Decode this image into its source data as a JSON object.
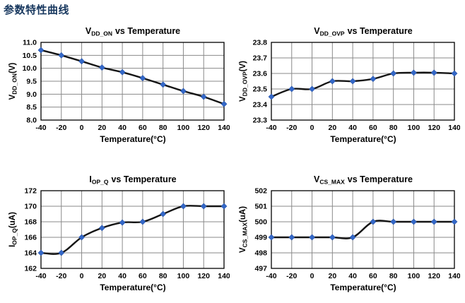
{
  "page": {
    "header": "参数特性曲线"
  },
  "colors": {
    "header": "#17375E",
    "line": "#141414",
    "marker": "#3468C8",
    "marker_stroke": "#2A55A8",
    "grid": "#8A8A8A",
    "frame": "#000000"
  },
  "chart_data": [
    {
      "type": "line",
      "title": {
        "main": "V",
        "sub": "DD_ON",
        "rest": "vs Temperature"
      },
      "ylabel": {
        "main": "V",
        "sub": "DD_ON",
        "rest": "(V)"
      },
      "xlabel": "Temperature(°C)",
      "x": [
        -40,
        -20,
        0,
        20,
        40,
        60,
        80,
        100,
        120,
        140
      ],
      "values": [
        10.7,
        10.5,
        10.27,
        10.03,
        9.85,
        9.62,
        9.37,
        9.12,
        8.9,
        8.62
      ],
      "ylim": [
        8.0,
        11.0
      ],
      "ystep": 0.5,
      "ydec": 1,
      "grid": true,
      "legend": "none"
    },
    {
      "type": "line",
      "title": {
        "main": "V",
        "sub": "DD_OVP",
        "rest": "vs Temperature"
      },
      "ylabel": {
        "main": "V",
        "sub": "DD_OVP",
        "rest": "(V)"
      },
      "xlabel": "Temperature(°C)",
      "x": [
        -40,
        -20,
        0,
        20,
        40,
        60,
        80,
        100,
        120,
        140
      ],
      "values": [
        23.45,
        23.5,
        23.5,
        23.55,
        23.55,
        23.565,
        23.6,
        23.605,
        23.605,
        23.6
      ],
      "ylim": [
        23.3,
        23.8
      ],
      "ystep": 0.1,
      "ydec": 1,
      "grid": true,
      "legend": "none"
    },
    {
      "type": "line",
      "title": {
        "main": "I",
        "sub": "OP_Q",
        "rest": "vs Temperature"
      },
      "ylabel": {
        "main": "I",
        "sub": "OP_Q",
        "rest": "(uA)"
      },
      "xlabel": "Temperature(°C)",
      "x": [
        -40,
        -20,
        0,
        20,
        40,
        60,
        80,
        100,
        120,
        140
      ],
      "values": [
        164,
        164,
        166,
        167.2,
        167.9,
        168,
        169,
        170,
        170,
        170
      ],
      "ylim": [
        162,
        172
      ],
      "ystep": 2,
      "ydec": 0,
      "grid": true,
      "legend": "none"
    },
    {
      "type": "line",
      "title": {
        "main": "V",
        "sub": "CS_MAX",
        "rest": "vs Temperature"
      },
      "ylabel": {
        "main": "V",
        "sub": "CS_MAX",
        "rest": "(uA)"
      },
      "xlabel": "Temperature(°C)",
      "x": [
        -40,
        -20,
        0,
        20,
        40,
        60,
        80,
        100,
        120,
        140
      ],
      "values": [
        499,
        499,
        499,
        499,
        499,
        500,
        500,
        500,
        500,
        500
      ],
      "ylim": [
        497,
        502
      ],
      "ystep": 1,
      "ydec": 0,
      "grid": true,
      "legend": "none"
    }
  ]
}
